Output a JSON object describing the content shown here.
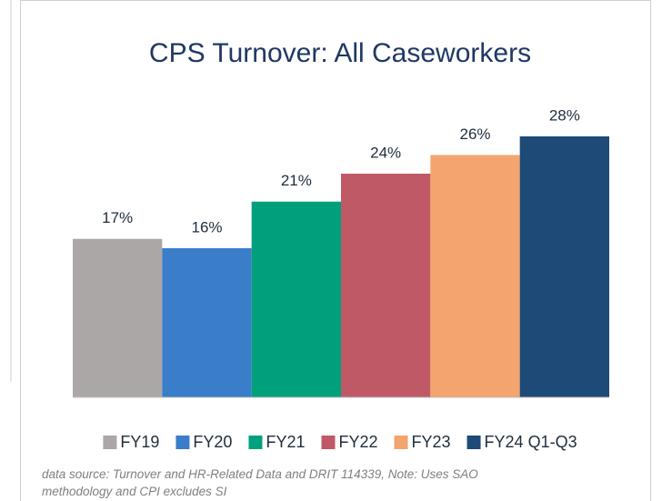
{
  "chart_data": {
    "type": "bar",
    "title": "CPS Turnover: All Caseworkers",
    "categories": [
      "FY19",
      "FY20",
      "FY21",
      "FY22",
      "FY23",
      "FY24 Q1-Q3"
    ],
    "values": [
      17,
      16,
      21,
      24,
      26,
      28
    ],
    "value_labels": [
      "17%",
      "16%",
      "21%",
      "24%",
      "26%",
      "28%"
    ],
    "colors": [
      "#aba7a6",
      "#3a7dc9",
      "#00a07d",
      "#c05966",
      "#f4a46e",
      "#1e4a78"
    ],
    "note": "data source: Turnover and HR-Related Data and DRIT 114339, Note: Uses SAO methodology and CPI excludes SI"
  }
}
